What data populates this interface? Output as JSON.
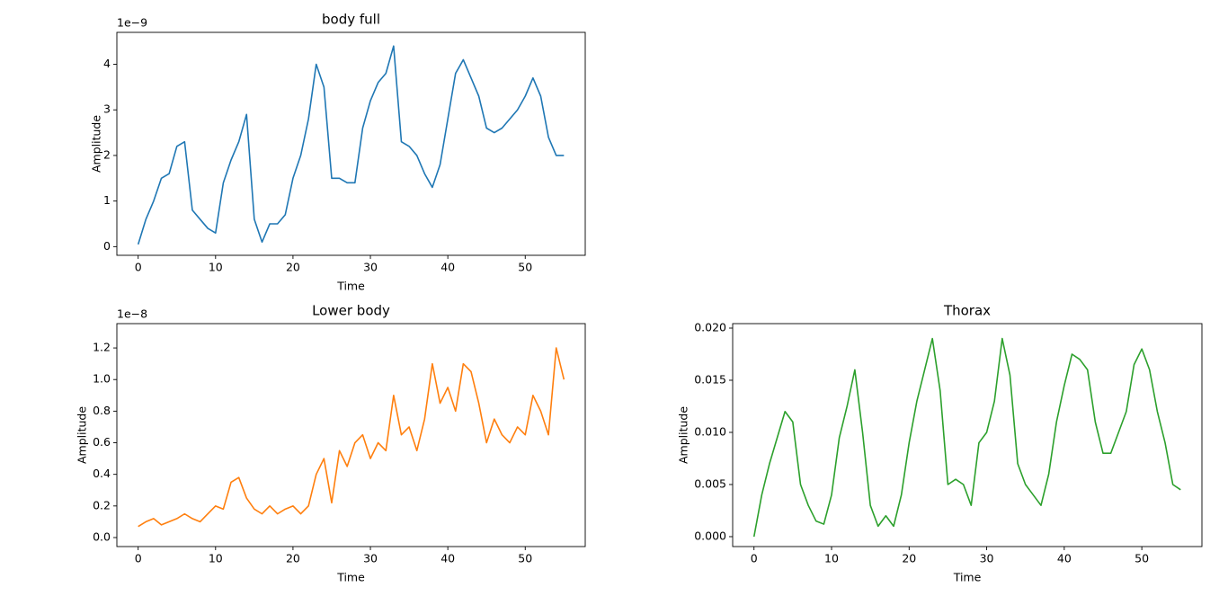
{
  "chart_data": [
    {
      "type": "line",
      "title": "body full",
      "xlabel": "Time",
      "ylabel": "Amplitude",
      "offset_label": "1e−9",
      "color": "#1f77b4",
      "x": [
        0,
        1,
        2,
        3,
        4,
        5,
        6,
        7,
        8,
        9,
        10,
        11,
        12,
        13,
        14,
        15,
        16,
        17,
        18,
        19,
        20,
        21,
        22,
        23,
        24,
        25,
        26,
        27,
        28,
        29,
        30,
        31,
        32,
        33,
        34,
        35,
        36,
        37,
        38,
        39,
        40,
        41,
        42,
        43,
        44,
        45,
        46,
        47,
        48,
        49,
        50,
        51,
        52,
        53,
        54,
        55
      ],
      "values": [
        0.05,
        0.6,
        1.0,
        1.5,
        1.6,
        2.2,
        2.3,
        0.8,
        0.6,
        0.4,
        0.3,
        1.4,
        1.9,
        2.3,
        2.9,
        0.6,
        0.1,
        0.5,
        0.5,
        0.7,
        1.5,
        2.0,
        2.8,
        4.0,
        3.5,
        1.5,
        1.5,
        1.4,
        1.4,
        2.6,
        3.2,
        3.6,
        3.8,
        4.4,
        2.3,
        2.2,
        2.0,
        1.6,
        1.3,
        1.8,
        2.8,
        3.8,
        4.1,
        3.7,
        3.3,
        2.6,
        2.5,
        2.6,
        2.8,
        3.0,
        3.3,
        3.7,
        3.3,
        2.4,
        2.0,
        2.0
      ],
      "xlim": [
        -2.75,
        57.75
      ],
      "xticks": [
        0,
        10,
        20,
        30,
        40,
        50
      ],
      "ylim": [
        -0.19,
        4.7
      ],
      "yticks": [
        0,
        1,
        2,
        3,
        4
      ]
    },
    {
      "type": "line",
      "title": "Lower body",
      "xlabel": "Time",
      "ylabel": "Amplitude",
      "offset_label": "1e−8",
      "color": "#ff7f0e",
      "x": [
        0,
        1,
        2,
        3,
        4,
        5,
        6,
        7,
        8,
        9,
        10,
        11,
        12,
        13,
        14,
        15,
        16,
        17,
        18,
        19,
        20,
        21,
        22,
        23,
        24,
        25,
        26,
        27,
        28,
        29,
        30,
        31,
        32,
        33,
        34,
        35,
        36,
        37,
        38,
        39,
        40,
        41,
        42,
        43,
        44,
        45,
        46,
        47,
        48,
        49,
        50,
        51,
        52,
        53,
        54,
        55
      ],
      "values": [
        0.07,
        0.1,
        0.12,
        0.08,
        0.1,
        0.12,
        0.15,
        0.12,
        0.1,
        0.15,
        0.2,
        0.18,
        0.35,
        0.38,
        0.25,
        0.18,
        0.15,
        0.2,
        0.15,
        0.18,
        0.2,
        0.15,
        0.2,
        0.4,
        0.5,
        0.22,
        0.55,
        0.45,
        0.6,
        0.65,
        0.5,
        0.6,
        0.55,
        0.9,
        0.65,
        0.7,
        0.55,
        0.75,
        1.1,
        0.85,
        0.95,
        0.8,
        1.1,
        1.05,
        0.85,
        0.6,
        0.75,
        0.65,
        0.6,
        0.7,
        0.65,
        0.9,
        0.8,
        0.65,
        1.2,
        1.0
      ],
      "xlim": [
        -2.75,
        57.75
      ],
      "xticks": [
        0,
        10,
        20,
        30,
        40,
        50
      ],
      "ylim": [
        -0.057,
        1.354
      ],
      "yticks": [
        {
          "value": 0,
          "label": "0.0"
        },
        0.2,
        0.4,
        0.6,
        0.8,
        {
          "value": 1,
          "label": "1.0"
        },
        1.2
      ]
    },
    {
      "type": "line",
      "title": "Thorax",
      "xlabel": "Time",
      "ylabel": "Amplitude",
      "color": "#2ca02c",
      "x": [
        0,
        1,
        2,
        3,
        4,
        5,
        6,
        7,
        8,
        9,
        10,
        11,
        12,
        13,
        14,
        15,
        16,
        17,
        18,
        19,
        20,
        21,
        22,
        23,
        24,
        25,
        26,
        27,
        28,
        29,
        30,
        31,
        32,
        33,
        34,
        35,
        36,
        37,
        38,
        39,
        40,
        41,
        42,
        43,
        44,
        45,
        46,
        47,
        48,
        49,
        50,
        51,
        52,
        53,
        54,
        55
      ],
      "values": [
        0,
        0.004,
        0.007,
        0.0095,
        0.012,
        0.011,
        0.005,
        0.003,
        0.0015,
        0.0012,
        0.004,
        0.0095,
        0.0125,
        0.016,
        0.01,
        0.003,
        0.001,
        0.002,
        0.001,
        0.004,
        0.009,
        0.013,
        0.016,
        0.019,
        0.014,
        0.005,
        0.0055,
        0.005,
        0.003,
        0.009,
        0.01,
        0.013,
        0.019,
        0.0155,
        0.007,
        0.005,
        0.004,
        0.003,
        0.006,
        0.011,
        0.0145,
        0.0175,
        0.017,
        0.016,
        0.011,
        0.008,
        0.008,
        0.01,
        0.012,
        0.0165,
        0.018,
        0.016,
        0.012,
        0.009,
        0.005,
        0.0045
      ],
      "xlim": [
        -2.75,
        57.75
      ],
      "xticks": [
        0,
        10,
        20,
        30,
        40,
        50
      ],
      "ylim": [
        -0.00095,
        0.02043
      ],
      "yticks": [
        {
          "value": 0,
          "label": "0.000"
        },
        {
          "value": 0.005,
          "label": "0.005"
        },
        {
          "value": 0.01,
          "label": "0.010"
        },
        {
          "value": 0.015,
          "label": "0.015"
        },
        {
          "value": 0.02,
          "label": "0.020"
        }
      ]
    }
  ]
}
